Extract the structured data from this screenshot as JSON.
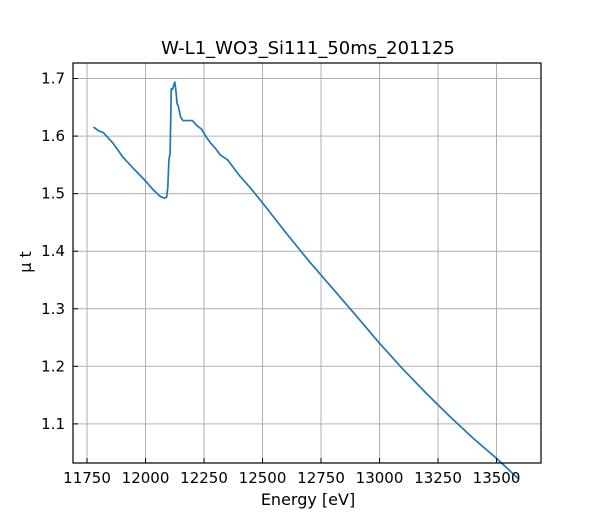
{
  "chart_data": {
    "type": "line",
    "title": "W-L1_WO3_Si111_50ms_201125",
    "xlabel": "Energy [eV]",
    "ylabel": "μ t",
    "xlim": [
      11690,
      13690
    ],
    "ylim": [
      1.032,
      1.727
    ],
    "grid": true,
    "ticks_direction": "in",
    "x_ticks": [
      11750,
      12000,
      12250,
      12500,
      12750,
      13000,
      13250,
      13500
    ],
    "x_tick_labels": [
      "11750",
      "12000",
      "12250",
      "12500",
      "12750",
      "13000",
      "13250",
      "13500"
    ],
    "y_ticks": [
      1.1,
      1.2,
      1.3,
      1.4,
      1.5,
      1.6,
      1.7
    ],
    "y_tick_labels": [
      "1.1",
      "1.2",
      "1.3",
      "1.4",
      "1.5",
      "1.6",
      "1.7"
    ],
    "series": [
      {
        "color": "#1f77b4",
        "x": [
          11780,
          11800,
          11820,
          11840,
          11860,
          11880,
          11900,
          11950,
          12000,
          12030,
          12060,
          12080,
          12090,
          12095,
          12100,
          12105,
          12110,
          12115,
          12120,
          12125,
          12130,
          12135,
          12140,
          12150,
          12160,
          12170,
          12200,
          12220,
          12240,
          12260,
          12280,
          12300,
          12320,
          12350,
          12380,
          12400,
          12450,
          12500,
          12600,
          12700,
          12800,
          12900,
          13000,
          13100,
          13200,
          13300,
          13400,
          13500,
          13590
        ],
        "y": [
          1.615,
          1.609,
          1.606,
          1.597,
          1.588,
          1.577,
          1.565,
          1.543,
          1.522,
          1.508,
          1.496,
          1.492,
          1.494,
          1.51,
          1.56,
          1.57,
          1.682,
          1.681,
          1.688,
          1.694,
          1.678,
          1.656,
          1.652,
          1.633,
          1.627,
          1.627,
          1.627,
          1.618,
          1.612,
          1.598,
          1.587,
          1.578,
          1.567,
          1.559,
          1.543,
          1.532,
          1.509,
          1.484,
          1.432,
          1.382,
          1.335,
          1.288,
          1.24,
          1.195,
          1.153,
          1.113,
          1.075,
          1.04,
          1.006
        ]
      }
    ]
  }
}
